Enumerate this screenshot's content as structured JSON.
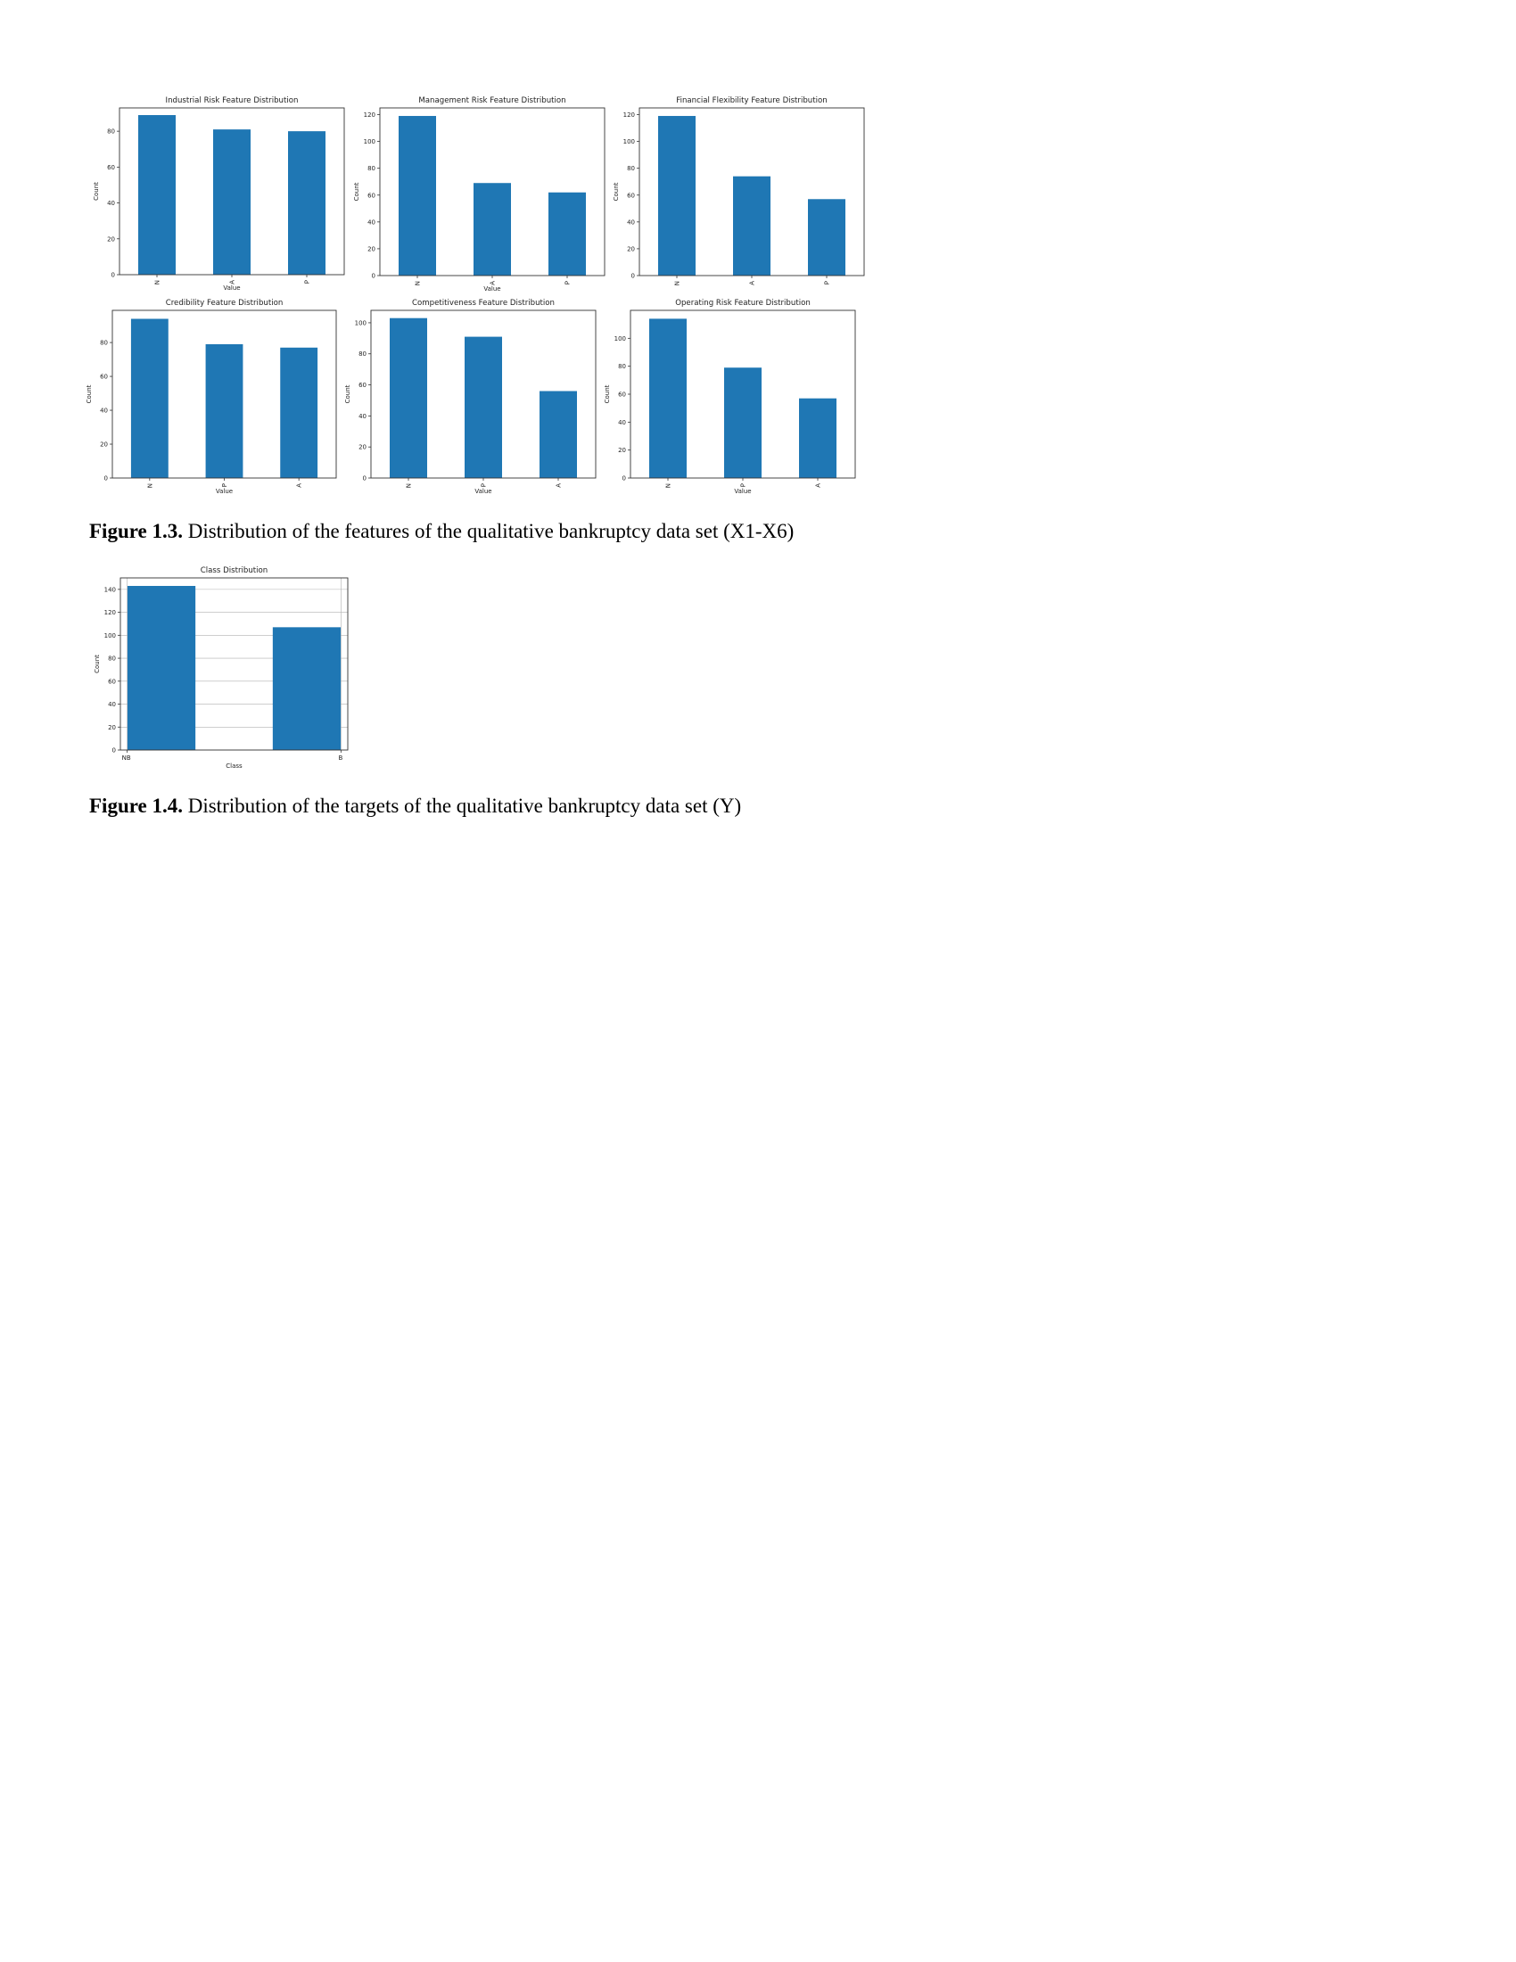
{
  "chart_data": [
    {
      "type": "bar",
      "title": "Industrial Risk Feature Distribution",
      "categories": [
        "N",
        "A",
        "P"
      ],
      "values": [
        89,
        81,
        80
      ],
      "xlabel": "Value",
      "ylabel": "Count",
      "ylim": [
        0,
        93
      ],
      "yticks": [
        0,
        20,
        40,
        60,
        80
      ],
      "grid": false,
      "rotate_x": true
    },
    {
      "type": "bar",
      "title": "Management Risk Feature Distribution",
      "categories": [
        "N",
        "A",
        "P"
      ],
      "values": [
        119,
        69,
        62
      ],
      "xlabel": "Value",
      "ylabel": "Count",
      "ylim": [
        0,
        125
      ],
      "yticks": [
        0,
        20,
        40,
        60,
        80,
        100,
        120
      ],
      "grid": false,
      "rotate_x": true
    },
    {
      "type": "bar",
      "title": "Financial Flexibility Feature Distribution",
      "categories": [
        "N",
        "A",
        "P"
      ],
      "values": [
        119,
        74,
        57
      ],
      "xlabel": "",
      "ylabel": "Count",
      "ylim": [
        0,
        125
      ],
      "yticks": [
        0,
        20,
        40,
        60,
        80,
        100,
        120
      ],
      "grid": false,
      "rotate_x": true
    },
    {
      "type": "bar",
      "title": "Credibility Feature Distribution",
      "categories": [
        "N",
        "P",
        "A"
      ],
      "values": [
        94,
        79,
        77
      ],
      "xlabel": "Value",
      "ylabel": "Count",
      "ylim": [
        0,
        99
      ],
      "yticks": [
        0,
        20,
        40,
        60,
        80
      ],
      "grid": false,
      "rotate_x": true
    },
    {
      "type": "bar",
      "title": "Competitiveness Feature Distribution",
      "categories": [
        "N",
        "P",
        "A"
      ],
      "values": [
        103,
        91,
        56
      ],
      "xlabel": "Value",
      "ylabel": "Count",
      "ylim": [
        0,
        108
      ],
      "yticks": [
        0,
        20,
        40,
        60,
        80,
        100
      ],
      "grid": false,
      "rotate_x": true
    },
    {
      "type": "bar",
      "title": "Operating Risk Feature Distribution",
      "categories": [
        "N",
        "P",
        "A"
      ],
      "values": [
        114,
        79,
        57
      ],
      "xlabel": "Value",
      "ylabel": "Count",
      "ylim": [
        0,
        120
      ],
      "yticks": [
        0,
        20,
        40,
        60,
        80,
        100
      ],
      "grid": false,
      "rotate_x": true
    },
    {
      "type": "bar",
      "title": "Class Distribution",
      "categories": [
        "NB",
        "B"
      ],
      "values": [
        143,
        107
      ],
      "xlabel": "Class",
      "ylabel": "Count",
      "ylim": [
        0,
        150
      ],
      "yticks": [
        0,
        20,
        40,
        60,
        80,
        100,
        120,
        140
      ],
      "grid": true,
      "rotate_x": false
    }
  ],
  "colors": {
    "bar": "#1f77b4",
    "axis": "#333333",
    "grid": "#b0b0b0"
  },
  "captions": {
    "fig3_label": "Figure 1.3.",
    "fig3_text": " Distribution of the features of the qualitative bankruptcy data set (X1-X6)",
    "fig4_label": "Figure 1.4.",
    "fig4_text": " Distribution of the targets of the qualitative bankruptcy data set (Y)"
  }
}
